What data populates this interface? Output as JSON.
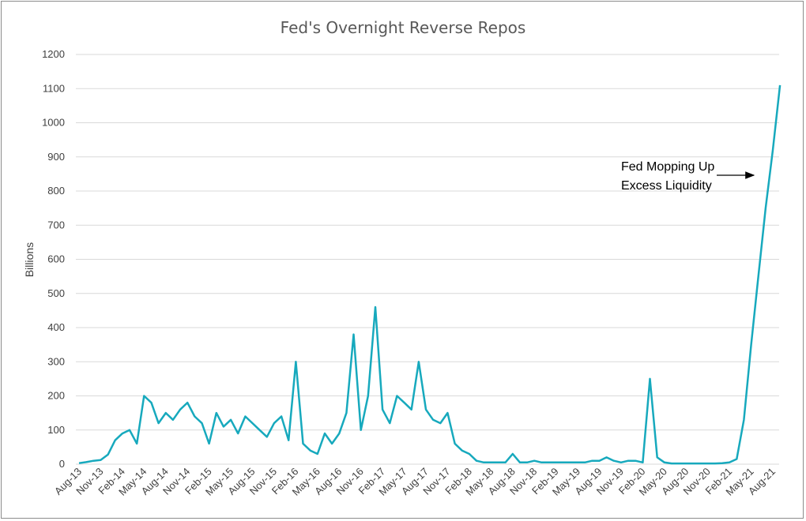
{
  "chart_data": {
    "type": "line",
    "title": "Fed's Overnight Reverse Repos",
    "ylabel": "Billions",
    "xlabel": "",
    "ylim": [
      0,
      1200
    ],
    "yticks": [
      0,
      100,
      200,
      300,
      400,
      500,
      600,
      700,
      800,
      900,
      1000,
      1100,
      1200
    ],
    "grid": "horizontal",
    "legend": "none",
    "line_color": "#17a9bd",
    "x_tick_labels": [
      "Aug-13",
      "Nov-13",
      "Feb-14",
      "May-14",
      "Aug-14",
      "Nov-14",
      "Feb-15",
      "May-15",
      "Aug-15",
      "Nov-15",
      "Feb-16",
      "May-16",
      "Aug-16",
      "Nov-16",
      "Feb-17",
      "May-17",
      "Aug-17",
      "Nov-17",
      "Feb-18",
      "May-18",
      "Aug-18",
      "Nov-18",
      "Feb-19",
      "May-19",
      "Aug-19",
      "Nov-19",
      "Feb-20",
      "May-20",
      "Aug-20",
      "Nov-20",
      "Feb-21",
      "May-21",
      "Aug-21"
    ],
    "series": [
      {
        "x": [
          "2013-08",
          "2013-09",
          "2013-10",
          "2013-11",
          "2013-12",
          "2014-01",
          "2014-02",
          "2014-03",
          "2014-04",
          "2014-05",
          "2014-06",
          "2014-07",
          "2014-08",
          "2014-09",
          "2014-10",
          "2014-11",
          "2014-12",
          "2015-01",
          "2015-02",
          "2015-03",
          "2015-04",
          "2015-05",
          "2015-06",
          "2015-07",
          "2015-08",
          "2015-09",
          "2015-10",
          "2015-11",
          "2015-12",
          "2016-01",
          "2016-02",
          "2016-03",
          "2016-04",
          "2016-05",
          "2016-06",
          "2016-07",
          "2016-08",
          "2016-09",
          "2016-10",
          "2016-11",
          "2016-12",
          "2017-01",
          "2017-02",
          "2017-03",
          "2017-04",
          "2017-05",
          "2017-06",
          "2017-07",
          "2017-08",
          "2017-09",
          "2017-10",
          "2017-11",
          "2017-12",
          "2018-01",
          "2018-02",
          "2018-03",
          "2018-04",
          "2018-05",
          "2018-06",
          "2018-07",
          "2018-08",
          "2018-09",
          "2018-10",
          "2018-11",
          "2018-12",
          "2019-01",
          "2019-02",
          "2019-03",
          "2019-04",
          "2019-05",
          "2019-06",
          "2019-07",
          "2019-08",
          "2019-09",
          "2019-10",
          "2019-11",
          "2019-12",
          "2020-01",
          "2020-02",
          "2020-03",
          "2020-04",
          "2020-05",
          "2020-06",
          "2020-07",
          "2020-08",
          "2020-09",
          "2020-10",
          "2020-11",
          "2020-12",
          "2021-01",
          "2021-02",
          "2021-03",
          "2021-04",
          "2021-05",
          "2021-06",
          "2021-07",
          "2021-08",
          "2021-09"
        ],
        "values": [
          3,
          6,
          10,
          12,
          28,
          70,
          90,
          100,
          60,
          200,
          180,
          120,
          150,
          130,
          160,
          180,
          140,
          120,
          60,
          150,
          110,
          130,
          90,
          140,
          120,
          100,
          80,
          120,
          140,
          70,
          300,
          60,
          40,
          30,
          90,
          60,
          90,
          150,
          380,
          100,
          200,
          460,
          160,
          120,
          200,
          180,
          160,
          300,
          160,
          130,
          120,
          150,
          60,
          40,
          30,
          10,
          5,
          5,
          5,
          5,
          30,
          5,
          5,
          10,
          5,
          5,
          5,
          5,
          5,
          5,
          5,
          10,
          10,
          20,
          10,
          5,
          10,
          10,
          5,
          250,
          20,
          5,
          2,
          2,
          2,
          2,
          2,
          2,
          2,
          3,
          5,
          15,
          130,
          350,
          550,
          750,
          920,
          1110
        ]
      }
    ],
    "annotations": [
      {
        "lines": [
          "Fed Mopping Up",
          "Excess Liquidity"
        ],
        "points_to": "2021-06"
      }
    ]
  }
}
